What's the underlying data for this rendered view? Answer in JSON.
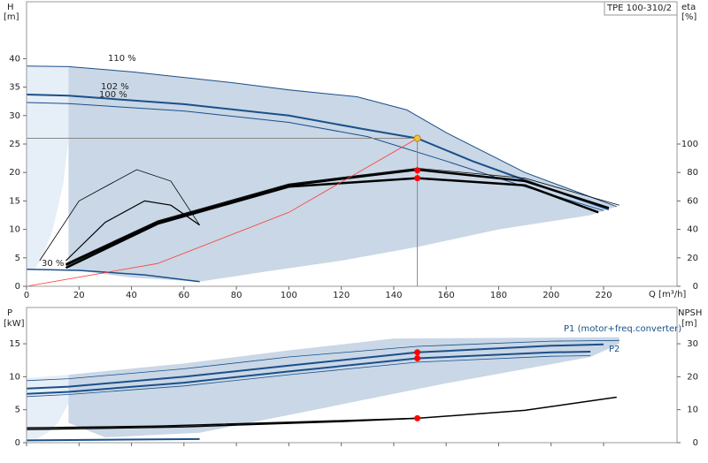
{
  "chart_data": [
    {
      "type": "line",
      "title": "TPE 100-310/2",
      "y_label": "H",
      "y_unit": "[m]",
      "y2_label": "eta",
      "y2_unit": "[%]",
      "x_label": "Q [m³/h]",
      "xlim": [
        0,
        248
      ],
      "xticks": [
        0,
        20,
        40,
        60,
        80,
        100,
        120,
        140,
        160,
        180,
        200,
        220
      ],
      "ylim": [
        0,
        50
      ],
      "yticks": [
        0,
        5,
        10,
        15,
        20,
        25,
        30,
        35,
        40
      ],
      "y2lim": [
        0,
        200
      ],
      "y2ticks": [
        0,
        20,
        40,
        60,
        80,
        100
      ],
      "series": [
        {
          "kind": "area",
          "color": "#e6eef7",
          "x": [
            0,
            16,
            16,
            14,
            10,
            6,
            3,
            0
          ],
          "values": [
            38.7,
            38.6,
            26,
            18,
            10,
            5,
            3,
            3
          ]
        },
        {
          "kind": "area",
          "color": "#c9d7e6",
          "x": [
            16,
            40,
            80,
            126,
            145,
            160,
            190,
            225,
            215,
            180,
            150,
            120,
            90,
            66,
            40,
            16
          ],
          "values": [
            38.6,
            37.7,
            35.7,
            33.3,
            31,
            27,
            20,
            14,
            12.5,
            10,
            7,
            4.5,
            2.5,
            0.8,
            1.5,
            3
          ]
        },
        {
          "kind": "line",
          "name": "110 %",
          "color": "#1b4f8a",
          "width": 1,
          "x": [
            0,
            16,
            40,
            80,
            100,
            126,
            145,
            160,
            190,
            225
          ],
          "values": [
            38.7,
            38.6,
            37.7,
            35.7,
            34.5,
            33.3,
            31,
            27,
            20,
            14
          ]
        },
        {
          "kind": "line",
          "name": "102 %",
          "color": "#1b4f8a",
          "width": 2,
          "x": [
            0,
            16,
            60,
            100,
            130,
            149,
            170,
            200,
            222
          ],
          "values": [
            33.7,
            33.5,
            32,
            30,
            27.5,
            26,
            22,
            17,
            13.5
          ]
        },
        {
          "kind": "line",
          "name": "100 %",
          "color": "#1b4f8a",
          "width": 1,
          "x": [
            0,
            16,
            60,
            100,
            130,
            160,
            190,
            220
          ],
          "values": [
            32.3,
            32.1,
            30.8,
            28.8,
            26.3,
            22,
            17.5,
            13.3
          ]
        },
        {
          "kind": "line",
          "name": "30 %",
          "color": "#1b4f8a",
          "width": 1.5,
          "x": [
            0,
            20,
            45,
            66
          ],
          "values": [
            3,
            2.8,
            2,
            0.8
          ]
        },
        {
          "kind": "line",
          "axis": "y2",
          "color": "#000000",
          "width": 2.5,
          "x": [
            15,
            50,
            100,
            149,
            190,
            222
          ],
          "values": [
            15,
            45,
            71,
            82,
            74,
            55
          ]
        },
        {
          "kind": "line",
          "axis": "y2",
          "color": "#000000",
          "width": 2.5,
          "x": [
            15,
            50,
            100,
            149,
            190,
            218
          ],
          "values": [
            13,
            44,
            70,
            76,
            71,
            52
          ]
        },
        {
          "kind": "line",
          "axis": "y2",
          "color": "#000000",
          "width": 0.8,
          "x": [
            5,
            20,
            42,
            55,
            66
          ],
          "values": [
            18,
            60,
            82,
            74,
            43
          ]
        },
        {
          "kind": "line",
          "axis": "y2",
          "color": "#000000",
          "width": 1.2,
          "x": [
            15,
            30,
            45,
            55,
            66
          ],
          "values": [
            18,
            45,
            60,
            57,
            43
          ]
        },
        {
          "kind": "line",
          "axis": "y2",
          "color": "#000000",
          "width": 0.8,
          "x": [
            15,
            50,
            100,
            149,
            190,
            226
          ],
          "values": [
            16,
            46,
            72,
            83,
            76,
            57
          ]
        },
        {
          "kind": "line",
          "color": "#ff3b30",
          "width": 0.8,
          "x": [
            0,
            50,
            100,
            149
          ],
          "values": [
            0,
            4,
            13,
            26
          ]
        }
      ],
      "markers": [
        {
          "x": 149,
          "y": 26,
          "axis": "y",
          "color": "#f5c242"
        },
        {
          "x": 149,
          "y": 81.5,
          "axis": "y2",
          "color": "#ff0000"
        },
        {
          "x": 149,
          "y": 76,
          "axis": "y2",
          "color": "#ff0000"
        }
      ]
    },
    {
      "type": "line",
      "y_label": "P",
      "y_unit": "[kW]",
      "y2_label": "NPSH",
      "y2_unit": "[m]",
      "xlim": [
        0,
        248
      ],
      "xticks": [
        0,
        20,
        40,
        60,
        80,
        100,
        120,
        140,
        160,
        180,
        200,
        220
      ],
      "ylim": [
        0,
        20.5
      ],
      "yticks": [
        0,
        5,
        10,
        15
      ],
      "y2lim": [
        0,
        41
      ],
      "y2ticks": [
        0,
        10,
        20,
        30
      ],
      "series": [
        {
          "kind": "area",
          "color": "#e6eef7",
          "x": [
            0,
            16,
            16,
            12,
            8,
            4,
            0
          ],
          "values": [
            9.8,
            10.3,
            6,
            3,
            1.5,
            0.6,
            0.6
          ]
        },
        {
          "kind": "area",
          "color": "#c9d7e6",
          "x": [
            16,
            60,
            100,
            140,
            226,
            226,
            215,
            160,
            110,
            66,
            30,
            16
          ],
          "values": [
            10.3,
            12,
            14,
            15.8,
            16,
            15,
            13,
            9,
            5,
            1.5,
            0.8,
            3
          ]
        },
        {
          "kind": "line",
          "name": "P1 (motor+freq.converter)",
          "color": "#1b4f8a",
          "width": 2,
          "x": [
            0,
            16,
            60,
            100,
            149,
            200,
            220
          ],
          "values": [
            8.2,
            8.5,
            10,
            11.7,
            13.7,
            14.7,
            14.9
          ]
        },
        {
          "kind": "line",
          "name": "P2",
          "color": "#1b4f8a",
          "width": 2,
          "x": [
            0,
            16,
            60,
            100,
            149,
            200,
            215
          ],
          "values": [
            7.4,
            7.7,
            9.1,
            10.8,
            12.8,
            13.7,
            13.8
          ]
        },
        {
          "kind": "line",
          "color": "#1b4f8a",
          "width": 0.8,
          "x": [
            0,
            16,
            60,
            100,
            149,
            200,
            226
          ],
          "values": [
            9.4,
            9.7,
            11.2,
            13,
            14.6,
            15.4,
            15.5
          ]
        },
        {
          "kind": "line",
          "color": "#1b4f8a",
          "width": 0.8,
          "x": [
            0,
            16,
            60,
            100,
            149,
            200,
            215
          ],
          "values": [
            7,
            7.3,
            8.6,
            10.3,
            12.2,
            13.1,
            13.2
          ]
        },
        {
          "kind": "line",
          "color": "#1b4f8a",
          "width": 2,
          "x": [
            0,
            66
          ],
          "values": [
            0.35,
            0.55
          ]
        },
        {
          "kind": "line",
          "axis": "y2",
          "color": "#000000",
          "width": 1.5,
          "x": [
            0,
            50,
            100,
            149,
            190,
            225
          ],
          "values": [
            4.5,
            5,
            6.2,
            7.4,
            9.8,
            13.8
          ]
        },
        {
          "kind": "line",
          "axis": "y2",
          "color": "#000000",
          "width": 1.5,
          "x": [
            0,
            60,
            120,
            149
          ],
          "values": [
            4,
            4.8,
            6.4,
            7.4
          ]
        }
      ],
      "markers": [
        {
          "x": 149,
          "y": 13.7,
          "axis": "y",
          "color": "#ff0000"
        },
        {
          "x": 149,
          "y": 12.8,
          "axis": "y",
          "color": "#ff0000"
        },
        {
          "x": 149,
          "y": 7.4,
          "axis": "y2",
          "color": "#ff0000"
        }
      ]
    }
  ]
}
